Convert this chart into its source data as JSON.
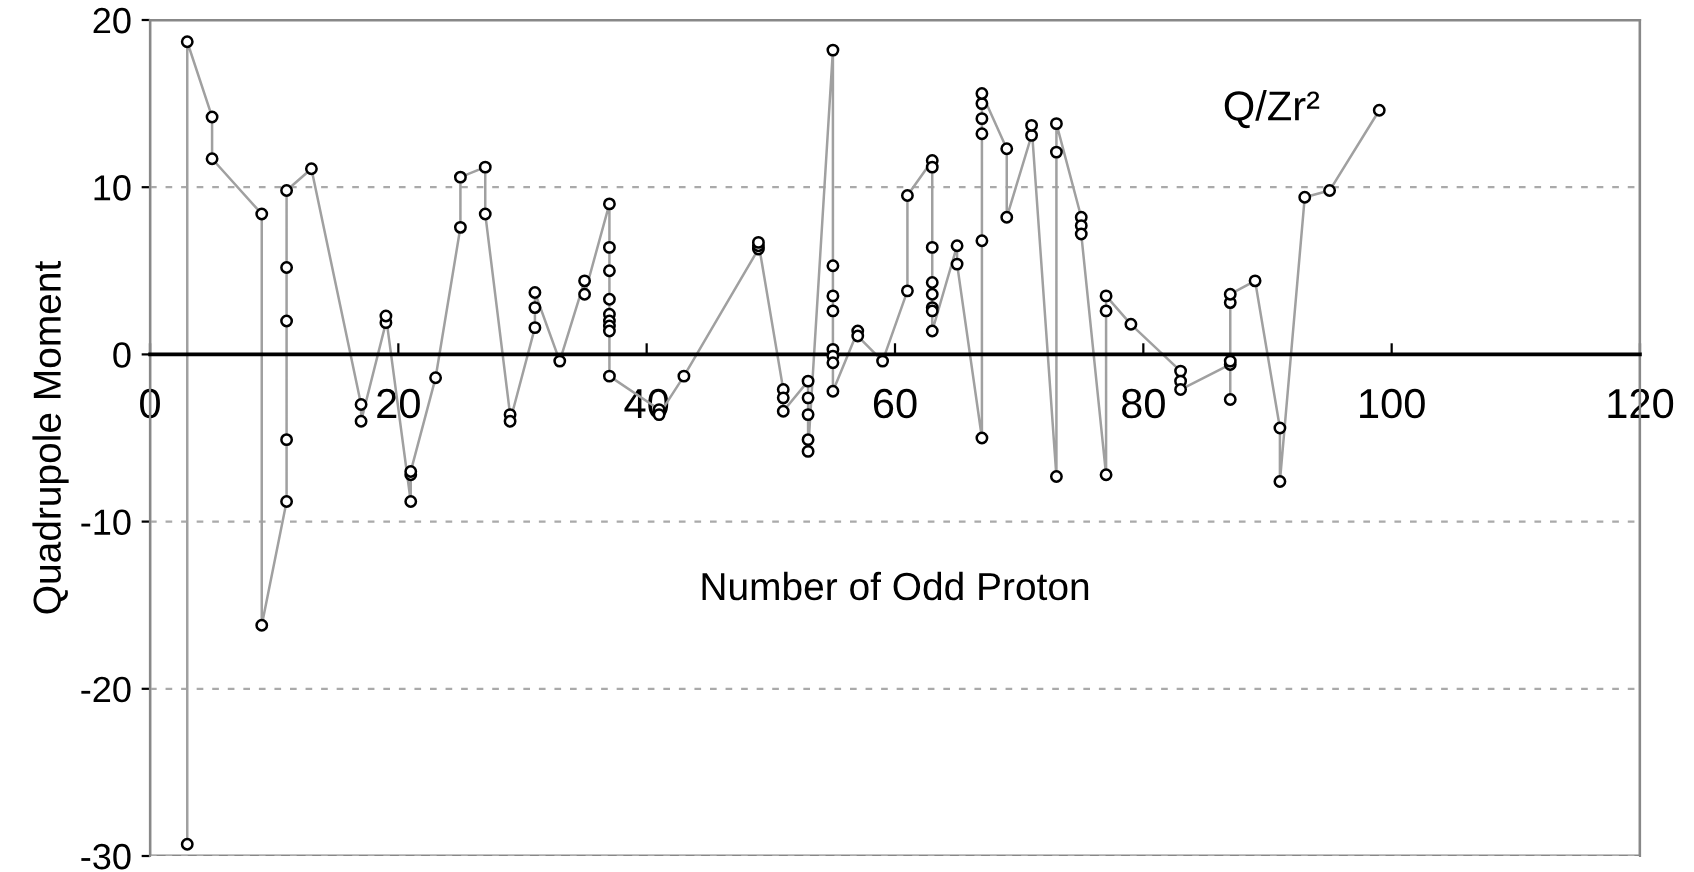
{
  "chart_data": {
    "type": "line",
    "xlabel": "Number of Odd Proton",
    "ylabel": "Quadrupole Moment",
    "annotations": [
      "Q/Zr²"
    ],
    "xlim": [
      0,
      120
    ],
    "xticks": [
      0,
      20,
      40,
      60,
      80,
      100,
      120
    ],
    "ylim": [
      -30,
      20
    ],
    "yticks": [
      -30,
      -20,
      -10,
      0,
      10,
      20
    ],
    "grid": "y",
    "marker": "circle",
    "line_style": "solid",
    "series": [
      {
        "color": "#a0a0a0",
        "x": [
          3,
          3,
          5,
          5,
          9,
          9,
          11,
          11,
          11,
          11,
          11,
          13,
          17,
          17,
          19,
          19,
          21,
          21,
          21,
          23,
          25,
          25,
          27,
          27,
          29,
          29,
          31,
          31,
          31,
          33,
          35,
          35,
          37,
          37,
          37,
          37,
          37,
          37,
          37,
          37,
          37,
          41,
          41,
          43,
          49,
          49,
          49,
          51,
          51,
          51,
          53,
          53,
          53,
          53,
          53,
          55,
          55,
          55,
          55,
          55,
          55,
          55,
          55,
          57,
          57,
          59,
          61,
          61,
          63,
          63,
          63,
          63,
          63,
          63,
          63,
          63,
          65,
          65,
          67,
          67,
          67,
          67,
          67,
          67,
          69,
          69,
          71,
          71,
          73,
          73,
          73,
          75,
          75,
          75,
          77,
          77,
          77,
          79,
          83,
          83,
          83,
          87,
          87,
          87,
          87,
          87,
          89,
          91,
          91,
          93,
          95,
          99
        ],
        "values": [
          -29.3,
          18.7,
          14.2,
          11.7,
          8.4,
          -16.2,
          -8.8,
          -5.1,
          2.0,
          5.2,
          9.8,
          11.1,
          -3.0,
          -4.0,
          1.9,
          2.3,
          -8.8,
          -7.2,
          -7.0,
          -1.4,
          7.6,
          10.6,
          11.2,
          8.4,
          -3.6,
          -4.0,
          1.6,
          2.8,
          3.7,
          -0.4,
          4.4,
          3.6,
          9.0,
          6.4,
          5.0,
          3.3,
          2.4,
          2.0,
          1.7,
          1.4,
          -1.3,
          -3.3,
          -3.6,
          -1.3,
          6.3,
          6.5,
          6.7,
          -2.1,
          -2.6,
          -3.4,
          -1.6,
          -2.6,
          -3.6,
          -5.1,
          -5.8,
          18.2,
          5.3,
          3.5,
          2.6,
          0.3,
          -0.1,
          -0.5,
          -2.2,
          1.4,
          1.1,
          -0.4,
          3.8,
          9.5,
          11.6,
          11.2,
          6.4,
          4.3,
          3.6,
          2.8,
          2.6,
          1.4,
          6.5,
          5.4,
          -5.0,
          6.8,
          13.2,
          14.1,
          15.0,
          15.6,
          12.3,
          8.2,
          13.1,
          13.7,
          -7.3,
          12.1,
          13.8,
          8.2,
          7.7,
          7.2,
          -7.2,
          2.6,
          3.5,
          1.8,
          -1.0,
          -1.6,
          -2.1,
          -0.6,
          -0.4,
          -2.7,
          3.1,
          3.6,
          4.4,
          -4.4,
          -7.6,
          9.4,
          9.8,
          14.6
        ]
      }
    ]
  }
}
